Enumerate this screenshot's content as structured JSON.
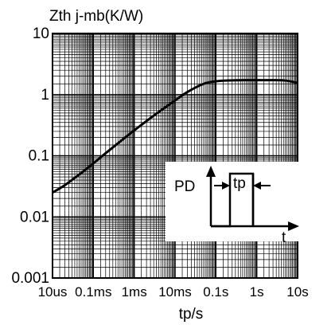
{
  "chart_data": {
    "type": "line",
    "ylabel": "Zth j-mb(K/W)",
    "xlabel": "tp/s",
    "x_scale": "log",
    "y_scale": "log",
    "xlim": [
      "10us",
      "10s"
    ],
    "ylim": [
      0.001,
      10
    ],
    "grid": true,
    "x_ticks": [
      {
        "value": 1e-05,
        "label": "10us"
      },
      {
        "value": 0.0001,
        "label": "0.1ms"
      },
      {
        "value": 0.001,
        "label": "1ms"
      },
      {
        "value": 0.01,
        "label": "10ms"
      },
      {
        "value": 0.1,
        "label": "0.1s"
      },
      {
        "value": 1,
        "label": "1s"
      },
      {
        "value": 10,
        "label": "10s"
      }
    ],
    "y_ticks": [
      {
        "value": 10,
        "label": "10"
      },
      {
        "value": 1,
        "label": "1"
      },
      {
        "value": 0.1,
        "label": "0.1"
      },
      {
        "value": 0.01,
        "label": "0.01"
      },
      {
        "value": 0.001,
        "label": "0.001"
      }
    ],
    "series": [
      {
        "x": [
          1e-05,
          2e-05,
          5e-05,
          0.0001,
          0.0002,
          0.0005,
          0.001,
          0.002,
          0.005,
          0.01,
          0.02,
          0.05,
          0.1,
          0.2,
          0.5,
          1,
          2,
          5,
          10
        ],
        "y": [
          0.025,
          0.033,
          0.052,
          0.075,
          0.11,
          0.18,
          0.26,
          0.37,
          0.58,
          0.8,
          1.1,
          1.5,
          1.65,
          1.7,
          1.72,
          1.72,
          1.72,
          1.7,
          1.55
        ]
      }
    ],
    "inset": {
      "label_pd": "PD",
      "label_tp": "tp",
      "label_t": "t"
    }
  }
}
